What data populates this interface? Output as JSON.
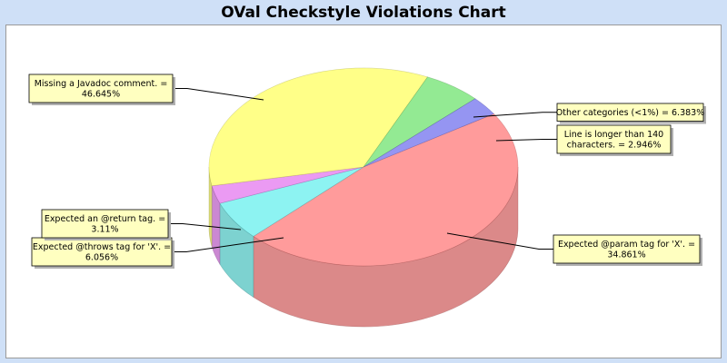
{
  "title": "OVal Checkstyle Violations Chart",
  "chart_data": {
    "type": "pie",
    "style": "3d",
    "legend": "none",
    "slices": [
      {
        "name": "Missing a Javadoc comment.",
        "value": 46.645,
        "color": "#ff7f7f",
        "label_lines": [
          "Missing a Javadoc comment. =",
          "46.645%"
        ]
      },
      {
        "name": "Other categories (<1%)",
        "value": 6.383,
        "color": "#6df0ee",
        "label_lines": [
          "Other categories (<1%) = 6.383%"
        ]
      },
      {
        "name": "Line is longer than 140 characters.",
        "value": 2.946,
        "color": "#e67df0",
        "label_lines": [
          "Line is longer than 140",
          "characters. = 2.946%"
        ]
      },
      {
        "name": "Expected @param tag for 'X'.",
        "value": 34.861,
        "color": "#ffff66",
        "label_lines": [
          "Expected @param tag for 'X'. =",
          "34.861%"
        ]
      },
      {
        "name": "Expected @throws tag for 'X'.",
        "value": 6.056,
        "color": "#74e474",
        "label_lines": [
          "Expected @throws tag for 'X'. =",
          "6.056%"
        ]
      },
      {
        "name": "Expected an @return tag.",
        "value": 3.11,
        "color": "#7777ee",
        "label_lines": [
          "Expected an @return tag. =",
          "3.11%"
        ]
      }
    ]
  }
}
